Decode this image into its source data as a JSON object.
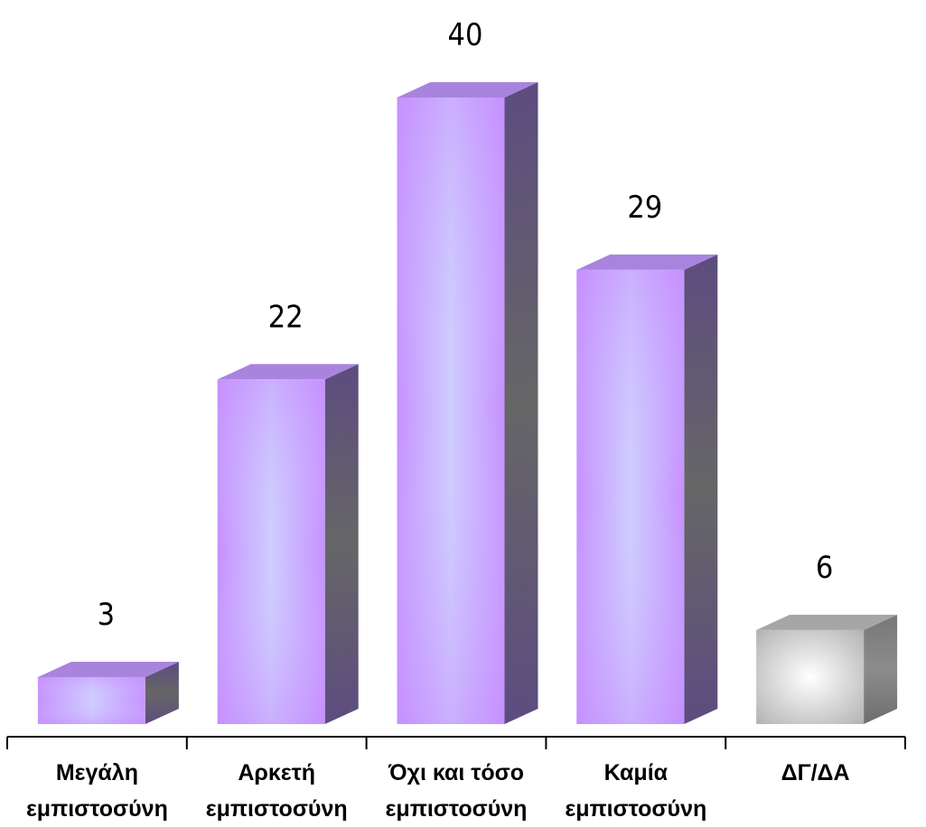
{
  "chart_data": {
    "type": "bar",
    "categories": [
      [
        "Μεγάλη",
        "εμπιστοσύνη"
      ],
      [
        "Αρκετή",
        "εμπιστοσύνη"
      ],
      [
        "Όχι και τόσο",
        "εμπιστοσύνη"
      ],
      [
        "Καμία",
        "εμπιστοσύνη"
      ],
      [
        "ΔΓ/ΔΑ"
      ]
    ],
    "values": [
      3,
      22,
      40,
      29,
      6
    ],
    "ylim": [
      0,
      40
    ],
    "grid": false,
    "legend": "none",
    "data_labels": true,
    "style": "3d-column",
    "colors": {
      "bar_front_edge": "#c690ff",
      "bar_front_center": "#cfcdff",
      "bar_top": "#a884dd",
      "bar_side": "#5d4c80",
      "bar_side_dark": "#666666",
      "other_front_edge": "#b3b3b3",
      "other_front_center": "#ffffff",
      "other_top": "#a6a6a6",
      "other_side": "#6e6e6e",
      "axis": "#000000"
    },
    "special_category_index": 4
  }
}
